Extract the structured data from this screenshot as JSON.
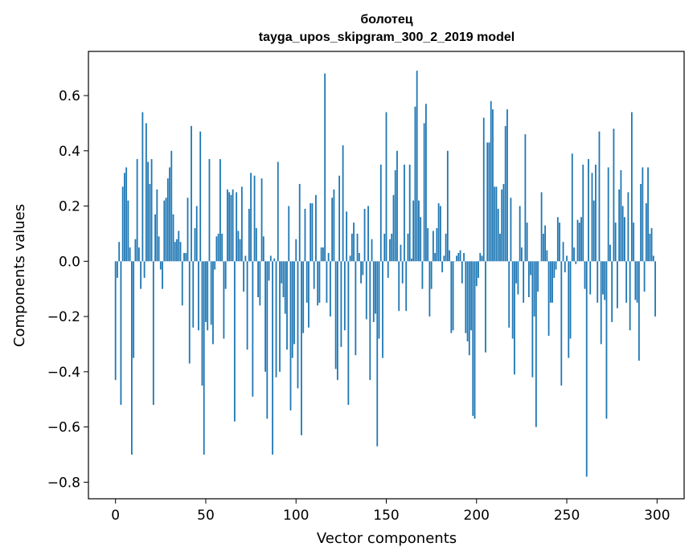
{
  "chart_data": {
    "type": "bar",
    "title_line1": "болотец",
    "title_line2": "tayga_upos_skipgram_300_2_2019 model",
    "xlabel": "Vector components",
    "ylabel": "Components values",
    "xlim": [
      -15,
      315
    ],
    "ylim": [
      -0.86,
      0.76
    ],
    "xticks": [
      0,
      50,
      100,
      150,
      200,
      250,
      300
    ],
    "yticks": [
      -0.8,
      -0.6,
      -0.4,
      -0.2,
      0.0,
      0.2,
      0.4,
      0.6
    ],
    "ytick_labels": [
      "−0.8",
      "−0.6",
      "−0.4",
      "−0.2",
      "0.0",
      "0.2",
      "0.4",
      "0.6"
    ],
    "xtick_labels": [
      "0",
      "50",
      "100",
      "150",
      "200",
      "250",
      "300"
    ],
    "bar_color": "#1f77b4",
    "grid": false,
    "values": [
      -0.43,
      -0.06,
      0.07,
      -0.52,
      0.27,
      0.32,
      0.34,
      0.22,
      0.05,
      -0.7,
      -0.35,
      0.08,
      0.37,
      0.05,
      -0.1,
      0.54,
      -0.06,
      0.5,
      0.36,
      0.28,
      0.37,
      -0.52,
      0.17,
      0.26,
      0.09,
      -0.03,
      -0.1,
      0.22,
      0.23,
      0.3,
      0.34,
      0.4,
      0.17,
      0.07,
      0.08,
      0.11,
      0.07,
      -0.16,
      0.03,
      0.03,
      0.23,
      -0.37,
      0.49,
      -0.24,
      0.12,
      0.2,
      -0.25,
      0.47,
      -0.45,
      -0.7,
      -0.22,
      -0.25,
      0.37,
      -0.23,
      -0.3,
      -0.03,
      0.09,
      0.1,
      0.37,
      0.1,
      -0.28,
      -0.1,
      0.26,
      0.25,
      0.24,
      0.26,
      -0.58,
      0.25,
      0.11,
      0.08,
      0.27,
      -0.11,
      0.02,
      -0.32,
      0.19,
      0.32,
      -0.49,
      0.31,
      0.12,
      -0.13,
      -0.16,
      0.3,
      0.09,
      -0.4,
      -0.57,
      -0.07,
      0.02,
      -0.7,
      0.01,
      -0.42,
      0.36,
      -0.4,
      -0.08,
      -0.13,
      -0.19,
      -0.32,
      0.2,
      -0.54,
      -0.35,
      -0.3,
      0.08,
      -0.46,
      0.28,
      -0.63,
      -0.26,
      0.19,
      -0.15,
      -0.24,
      0.21,
      0.21,
      -0.1,
      0.24,
      -0.16,
      -0.15,
      0.05,
      0.05,
      0.68,
      -0.15,
      0.03,
      -0.2,
      0.23,
      0.26,
      -0.39,
      -0.43,
      0.31,
      -0.31,
      0.42,
      -0.25,
      0.18,
      -0.52,
      0.02,
      0.1,
      0.14,
      -0.34,
      0.1,
      0.03,
      -0.08,
      -0.05,
      0.19,
      -0.21,
      0.2,
      -0.43,
      0.08,
      -0.22,
      -0.19,
      -0.67,
      -0.28,
      0.35,
      -0.35,
      0.1,
      0.54,
      -0.06,
      0.08,
      0.1,
      0.24,
      0.33,
      0.4,
      -0.18,
      0.06,
      -0.08,
      0.35,
      -0.18,
      0.1,
      0.35,
      0.01,
      0.22,
      0.56,
      0.69,
      0.22,
      0.16,
      -0.1,
      0.5,
      0.57,
      0.12,
      -0.2,
      -0.1,
      0.11,
      0.03,
      0.12,
      0.21,
      0.2,
      -0.04,
      0.02,
      0.1,
      0.4,
      0.04,
      -0.26,
      -0.25,
      0.0,
      0.02,
      0.03,
      0.04,
      -0.08,
      0.03,
      -0.26,
      -0.29,
      -0.34,
      -0.25,
      -0.56,
      -0.57,
      -0.09,
      -0.06,
      0.03,
      0.02,
      0.52,
      -0.33,
      0.43,
      0.43,
      0.58,
      0.55,
      0.27,
      0.27,
      0.19,
      0.1,
      0.26,
      0.28,
      0.49,
      0.55,
      -0.24,
      0.23,
      -0.28,
      -0.41,
      -0.08,
      -0.12,
      0.2,
      0.05,
      -0.15,
      0.46,
      0.14,
      -0.13,
      -0.05,
      -0.42,
      -0.2,
      -0.6,
      -0.11,
      0.0,
      0.25,
      0.1,
      0.13,
      0.04,
      -0.27,
      -0.15,
      -0.15,
      -0.06,
      -0.03,
      0.16,
      0.14,
      -0.45,
      0.07,
      -0.04,
      0.02,
      -0.35,
      -0.28,
      0.39,
      0.05,
      -0.01,
      0.15,
      0.14,
      0.16,
      0.35,
      -0.1,
      -0.78,
      0.37,
      -0.12,
      0.32,
      0.22,
      0.35,
      -0.15,
      0.47,
      -0.3,
      -0.12,
      -0.14,
      -0.57,
      0.34,
      0.06,
      -0.22,
      0.48,
      0.14,
      -0.17,
      0.26,
      0.33,
      0.2,
      0.16,
      -0.15,
      0.25,
      -0.25,
      0.54,
      0.14,
      -0.14,
      -0.15,
      -0.36,
      0.28,
      0.34,
      -0.11,
      0.21,
      0.34,
      0.1,
      0.12,
      0.02,
      -0.2
    ]
  }
}
